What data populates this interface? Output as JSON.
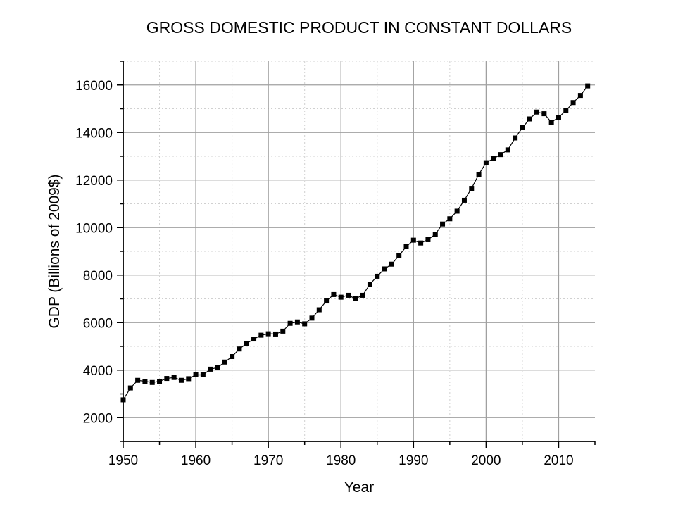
{
  "chart_data": {
    "type": "line",
    "title": "GROSS DOMESTIC PRODUCT IN CONSTANT DOLLARS",
    "xlabel": "Year",
    "ylabel": "GDP (Billions of 2009$)",
    "xlim": [
      1950,
      2015
    ],
    "ylim": [
      1000,
      17000
    ],
    "x_ticks": [
      1950,
      1960,
      1970,
      1980,
      1990,
      2000,
      2010
    ],
    "y_ticks": [
      2000,
      4000,
      6000,
      8000,
      10000,
      12000,
      14000,
      16000
    ],
    "x_tick_labels": [
      "1950",
      "1960",
      "1970",
      "1980",
      "1990",
      "2000",
      "2010"
    ],
    "y_tick_labels": [
      "2000",
      "4000",
      "6000",
      "8000",
      "10000",
      "12000",
      "14000",
      "16000"
    ],
    "grid": true,
    "marker": "square",
    "colors": {
      "line": "#000000",
      "grid_major": "#a0a0a0",
      "grid_minor": "#d0d0d0"
    },
    "series": [
      {
        "x": [
          1950,
          1951,
          1952,
          1953,
          1954,
          1955,
          1956,
          1957,
          1958,
          1959,
          1960,
          1961,
          1962,
          1963,
          1964,
          1965,
          1966,
          1967,
          1968,
          1969,
          1970,
          1971,
          1972,
          1973,
          1974,
          1975,
          1976,
          1977,
          1978,
          1979,
          1980,
          1981,
          1982,
          1983,
          1984,
          1985,
          1986,
          1987,
          1988,
          1989,
          1990,
          1991,
          1992,
          1993,
          1994,
          1995,
          1996,
          1997,
          1998,
          1999,
          2000,
          2001,
          2002,
          2003,
          2004,
          2005,
          2006,
          2007,
          2008,
          2009,
          2010,
          2011,
          2012,
          2013,
          2014
        ],
        "y": [
          2750,
          3250,
          3570,
          3530,
          3480,
          3530,
          3650,
          3690,
          3570,
          3640,
          3800,
          3800,
          4040,
          4110,
          4340,
          4570,
          4890,
          5120,
          5310,
          5470,
          5530,
          5520,
          5640,
          5970,
          6030,
          5950,
          6190,
          6540,
          6910,
          7180,
          7070,
          7150,
          7010,
          7150,
          7620,
          7950,
          8260,
          8460,
          8820,
          9200,
          9470,
          9350,
          9490,
          9720,
          10150,
          10370,
          10690,
          11150,
          11650,
          12240,
          12730,
          12900,
          13070,
          13270,
          13770,
          14200,
          14570,
          14860,
          14790,
          14430,
          14640,
          14920,
          15260,
          15560,
          15960
        ]
      }
    ]
  }
}
